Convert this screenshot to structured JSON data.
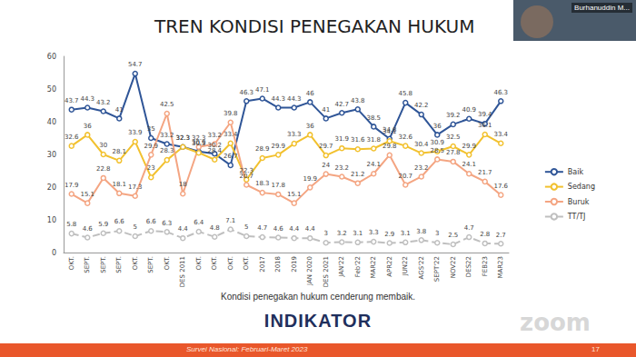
{
  "chart_data": {
    "type": "line",
    "title": "TREN KONDISI PENEGAKAN HUKUM",
    "categories": [
      "OKT.",
      "SEPT.",
      "SEPT.",
      "SEPT.",
      "OKT.",
      "SEPT.",
      "OKT.",
      "DES 2011",
      "OKT.",
      "OKT.",
      "OKT.",
      "OKT.",
      "2017",
      "2018",
      "2019",
      "JAN 2020",
      "DES 2021",
      "JAN'22",
      "Feb'22",
      "MAR22",
      "APR22",
      "JUN22",
      "AGS'22",
      "SEPT'22",
      "NOV22",
      "DES22",
      "FEB23",
      "MAR23"
    ],
    "series": [
      {
        "name": "Baik",
        "color": "#2f5597",
        "marker": "circle",
        "line_style": "solid",
        "values": [
          43.7,
          44.3,
          43.2,
          41.0,
          54.7,
          35.0,
          33.2,
          32.3,
          30.9,
          30.2,
          26.7,
          46.3,
          47.1,
          44.3,
          44.3,
          46.0,
          41.0,
          42.7,
          43.8,
          38.5,
          34.8,
          45.8,
          42.2,
          36.0,
          39.2,
          40.9,
          39.4,
          46.3
        ]
      },
      {
        "name": "Sedang",
        "color": "#f2c12e",
        "marker": "circle",
        "line_style": "solid",
        "values": [
          32.6,
          36.0,
          30.0,
          28.1,
          33.9,
          23.0,
          28.3,
          32.3,
          30.5,
          28.4,
          33.4,
          22.3,
          28.9,
          29.9,
          33.3,
          36.0,
          29.7,
          31.9,
          31.6,
          31.8,
          34.1,
          32.6,
          30.4,
          30.9,
          32.5,
          29.9,
          36.1,
          33.4
        ]
      },
      {
        "name": "Buruk",
        "color": "#f4a582",
        "marker": "circle",
        "line_style": "solid",
        "values": [
          17.9,
          15.1,
          22.8,
          18.1,
          17.3,
          29.9,
          42.5,
          18.0,
          32.3,
          33.2,
          39.8,
          20.7,
          18.3,
          17.8,
          15.1,
          19.9,
          24.0,
          23.2,
          21.2,
          24.1,
          29.8,
          20.7,
          23.2,
          28.5,
          27.8,
          24.1,
          21.7,
          17.6
        ]
      },
      {
        "name": "TT/TJ",
        "color": "#bfbfbf",
        "marker": "circle",
        "line_style": "dashed",
        "values": [
          5.8,
          4.6,
          5.9,
          6.6,
          5.0,
          6.6,
          6.3,
          4.4,
          6.4,
          4.8,
          7.1,
          5.0,
          4.7,
          4.6,
          4.4,
          4.4,
          3.0,
          3.2,
          3.1,
          3.3,
          2.9,
          3.1,
          3.8,
          3.0,
          2.5,
          4.7,
          2.8,
          2.7
        ]
      }
    ],
    "ylim": [
      0,
      60
    ],
    "yticks": [
      0,
      10,
      20,
      30,
      40,
      50,
      60
    ],
    "grid": false,
    "legend": "right",
    "data_labels": true
  },
  "slide": {
    "caption": "Kondisi penegakan hukum cenderung membaik.",
    "logo": "INDIKATOR",
    "footer": "Survei Nasional: Februari-Maret 2023",
    "page": "17",
    "participant": "Burhanuddin M...",
    "watermark": "zoom"
  }
}
